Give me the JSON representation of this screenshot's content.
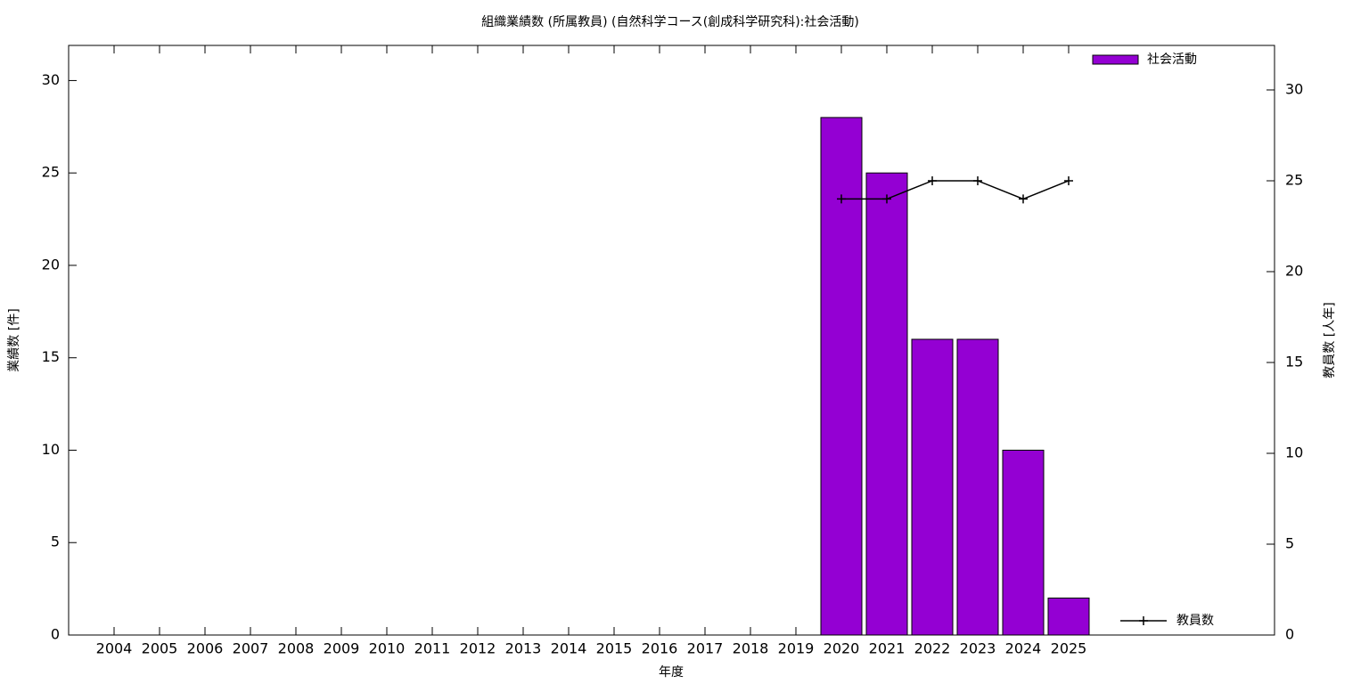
{
  "chart_data": {
    "type": "bar_line",
    "title": "組織業績数 (所属教員) (自然科学コース(創成科学研究科):社会活動)",
    "x_label": "年度",
    "y_label": "業績数 [件]",
    "y2_label": "教員数 [人年]",
    "categories": [
      "2004",
      "2005",
      "2006",
      "2007",
      "2008",
      "2009",
      "2010",
      "2011",
      "2012",
      "2013",
      "2014",
      "2015",
      "2016",
      "2017",
      "2018",
      "2019",
      "2020",
      "2021",
      "2022",
      "2023",
      "2024",
      "2025"
    ],
    "series": [
      {
        "name": "社会活動",
        "type": "bar",
        "color": "#9400d3",
        "values": [
          null,
          null,
          null,
          null,
          null,
          null,
          null,
          null,
          null,
          null,
          null,
          null,
          null,
          null,
          null,
          null,
          28,
          25,
          16,
          16,
          10,
          2
        ]
      },
      {
        "name": "教員数",
        "type": "line",
        "color": "#000000",
        "axis": "y2",
        "values": [
          null,
          null,
          null,
          null,
          null,
          null,
          null,
          null,
          null,
          null,
          null,
          null,
          null,
          null,
          null,
          null,
          24,
          24,
          25,
          25,
          24,
          25
        ]
      }
    ],
    "ylim": [
      0,
      31.9
    ],
    "yticks": [
      0,
      5,
      10,
      15,
      20,
      25,
      30
    ],
    "y2lim": [
      0,
      32.45
    ],
    "y2ticks": [
      0,
      5,
      10,
      15,
      20,
      25,
      30
    ]
  }
}
